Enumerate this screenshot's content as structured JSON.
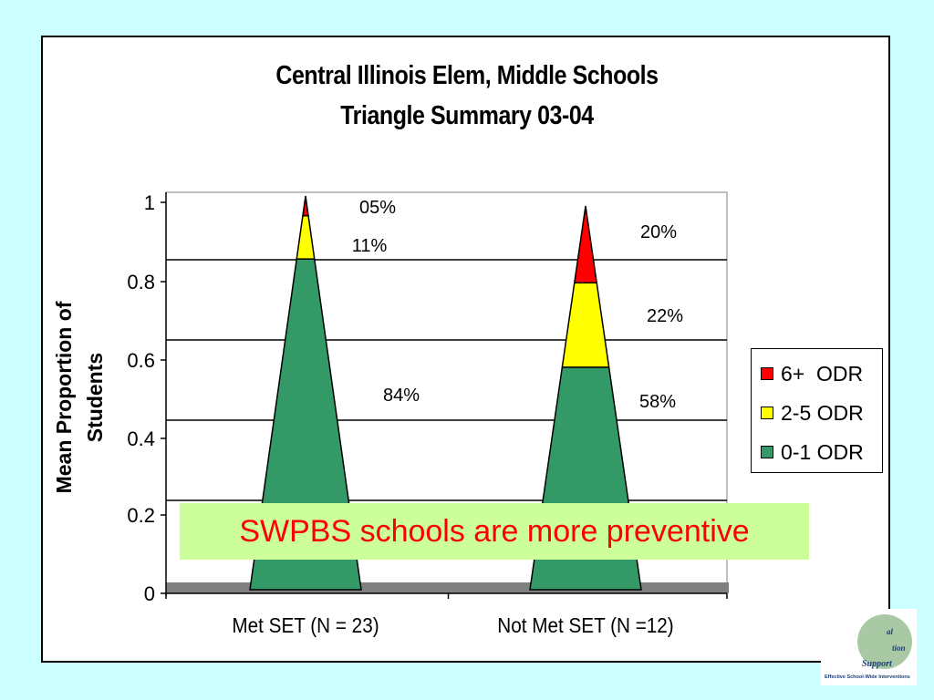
{
  "chart_data": {
    "type": "area",
    "title": "Central Illinois Elem, Middle Schools",
    "subtitle": "Triangle Summary 03-04",
    "ylabel": "Mean Proportion of Students",
    "ylabel_lines": [
      "Mean Proportion of",
      "Students"
    ],
    "xlabel": "",
    "ylim": [
      0,
      1
    ],
    "yticks": [
      "0",
      "0.2",
      "0.4",
      "0.6",
      "0.8",
      "1"
    ],
    "yticks_values": [
      0,
      0.2,
      0.4,
      0.6,
      0.8,
      1
    ],
    "grid": true,
    "legend_position": "right",
    "categories": [
      "Met SET (N = 23)",
      "Not Met SET (N =12)"
    ],
    "series": [
      {
        "name": "0-1 ODR",
        "color": "#339966",
        "values": [
          0.84,
          0.58
        ],
        "labels": [
          "84%",
          "58%"
        ]
      },
      {
        "name": "2-5 ODR",
        "color": "#ffff00",
        "values": [
          0.11,
          0.22
        ],
        "labels": [
          "11%",
          "22%"
        ]
      },
      {
        "name": "6+  ODR",
        "color": "#ff0000",
        "values": [
          0.05,
          0.2
        ],
        "labels": [
          "05%",
          "20%"
        ]
      }
    ],
    "legend_order": [
      "6+  ODR",
      "2-5 ODR",
      "0-1 ODR"
    ],
    "colors": {
      "plot_background": "#ffffff",
      "gridline": "#000000",
      "floor": "#808080"
    }
  },
  "callout": {
    "text": "SWPBS schools are more preventive",
    "text_color": "#ff0000",
    "background": "#ccff99"
  },
  "logo": {
    "words": [
      "al",
      "tion",
      "Support"
    ],
    "tagline": "Effective School-Wide Interventions"
  },
  "colors": {
    "slide_background": "#ccffff"
  }
}
